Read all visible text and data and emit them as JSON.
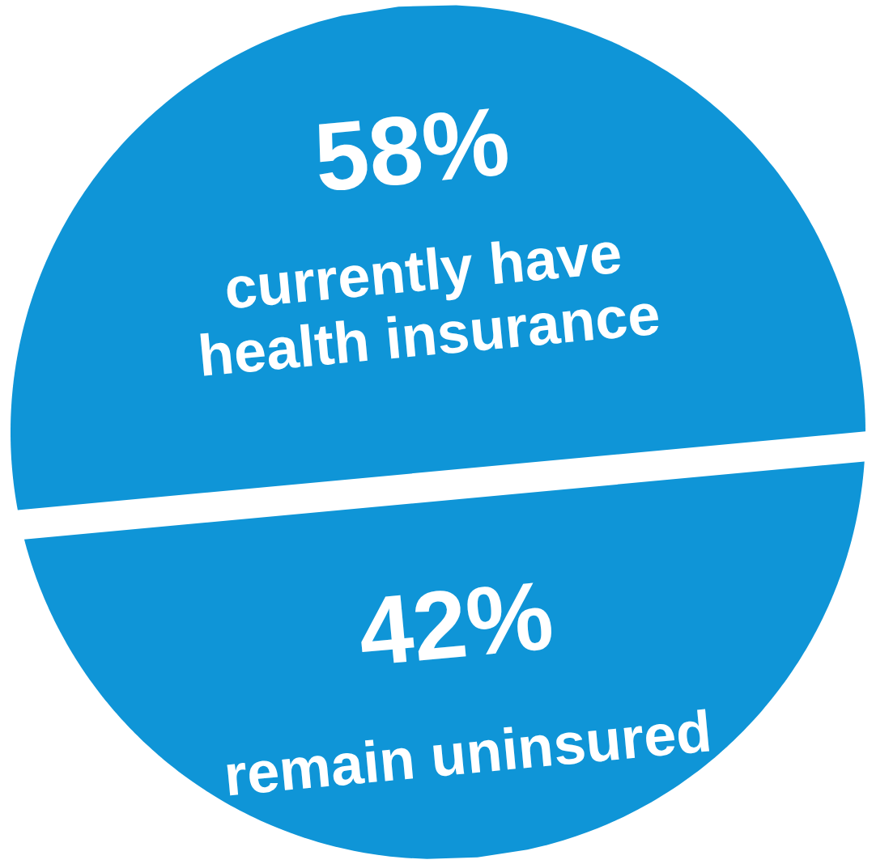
{
  "chart_data": {
    "type": "other",
    "categories": [
      "currently have\nhealth insurance",
      "remain uninsured"
    ],
    "values": [
      58,
      42
    ],
    "value_labels": [
      "58%",
      "42%"
    ],
    "colors": [
      "#0f95d7",
      "#0f95d7"
    ]
  }
}
